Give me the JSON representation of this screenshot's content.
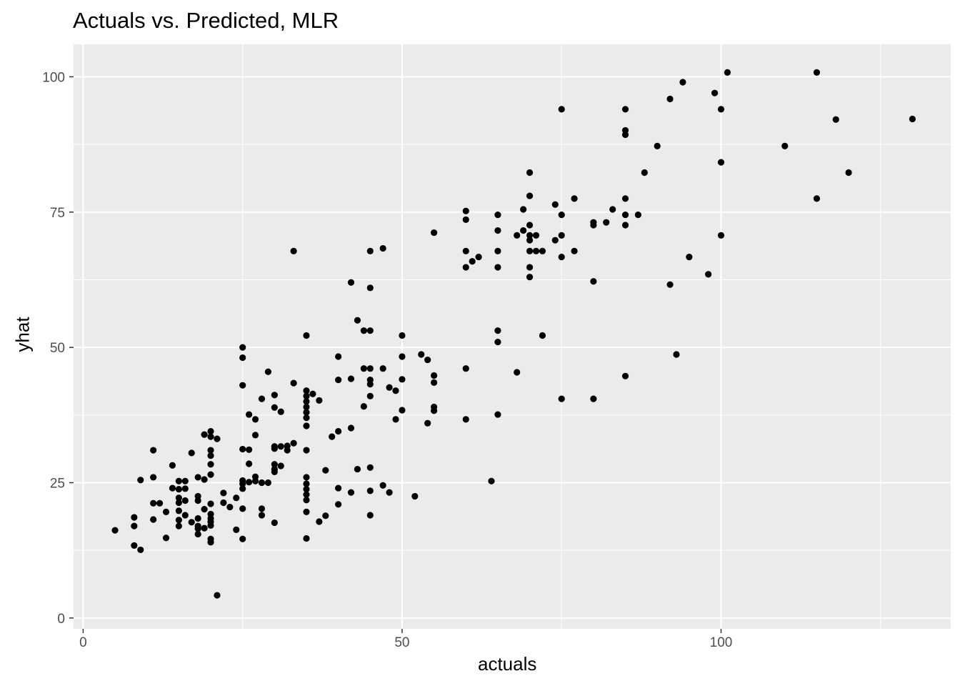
{
  "chart_data": {
    "type": "scatter",
    "title": "Actuals vs. Predicted, MLR",
    "xlabel": "actuals",
    "ylabel": "yhat",
    "xlim": [
      -1.5,
      136
    ],
    "ylim": [
      -2,
      106
    ],
    "x_ticks": [
      0,
      50,
      100
    ],
    "y_ticks": [
      0,
      25,
      50,
      75,
      100
    ],
    "grid": true,
    "background": "#ebebeb",
    "gridline_color": "#ffffff",
    "point_color": "#000000",
    "points": [
      [
        5,
        16.2
      ],
      [
        8,
        18.6
      ],
      [
        8,
        17
      ],
      [
        8,
        13.4
      ],
      [
        9,
        12.6
      ],
      [
        9,
        25.5
      ],
      [
        11,
        26
      ],
      [
        11,
        31
      ],
      [
        11,
        21.2
      ],
      [
        11,
        18.2
      ],
      [
        12,
        21.2
      ],
      [
        13,
        19.6
      ],
      [
        13,
        14.8
      ],
      [
        14,
        28.2
      ],
      [
        14,
        24
      ],
      [
        15,
        25.3
      ],
      [
        15,
        23.8
      ],
      [
        15,
        22.2
      ],
      [
        15,
        21.3
      ],
      [
        15,
        19.8
      ],
      [
        15,
        18.1
      ],
      [
        15,
        17
      ],
      [
        16,
        25.3
      ],
      [
        16,
        23.9
      ],
      [
        16,
        21.7
      ],
      [
        16,
        19
      ],
      [
        17,
        30.5
      ],
      [
        17,
        17.7
      ],
      [
        18,
        26
      ],
      [
        18,
        22.5
      ],
      [
        18,
        21.7
      ],
      [
        18,
        18.4
      ],
      [
        18,
        17
      ],
      [
        18,
        16.5
      ],
      [
        18,
        15.5
      ],
      [
        19,
        33.9
      ],
      [
        19,
        25.6
      ],
      [
        19,
        20.1
      ],
      [
        19,
        16.6
      ],
      [
        20,
        34.5
      ],
      [
        20,
        33.5
      ],
      [
        20,
        31
      ],
      [
        20,
        30
      ],
      [
        20,
        28.4
      ],
      [
        20,
        26.5
      ],
      [
        20,
        21.1
      ],
      [
        20,
        19.2
      ],
      [
        20,
        18.4
      ],
      [
        20,
        17.8
      ],
      [
        20,
        17.1
      ],
      [
        20,
        14.6
      ],
      [
        20,
        14
      ],
      [
        21,
        33.1
      ],
      [
        21,
        4.2
      ],
      [
        22,
        23.1
      ],
      [
        22,
        21.3
      ],
      [
        23,
        20.5
      ],
      [
        24,
        22.2
      ],
      [
        24,
        16.3
      ],
      [
        25,
        50
      ],
      [
        25,
        48.1
      ],
      [
        25,
        43
      ],
      [
        25,
        31.2
      ],
      [
        25,
        25.4
      ],
      [
        25,
        24.8
      ],
      [
        25,
        23.9
      ],
      [
        25,
        20.2
      ],
      [
        25,
        14.6
      ],
      [
        26,
        37.6
      ],
      [
        26,
        31.1
      ],
      [
        26,
        28.5
      ],
      [
        26,
        25.1
      ],
      [
        27,
        36.7
      ],
      [
        27,
        33.8
      ],
      [
        27,
        26.1
      ],
      [
        27,
        25.3
      ],
      [
        28,
        40.5
      ],
      [
        28,
        20.2
      ],
      [
        28,
        19
      ],
      [
        28,
        25
      ],
      [
        29,
        45.5
      ],
      [
        29,
        25
      ],
      [
        30,
        41.2
      ],
      [
        30,
        38.9
      ],
      [
        30,
        31.7
      ],
      [
        30,
        31.3
      ],
      [
        30,
        28.4
      ],
      [
        30,
        27.5
      ],
      [
        30,
        27
      ],
      [
        30,
        17.6
      ],
      [
        31,
        38.1
      ],
      [
        31,
        31.7
      ],
      [
        31,
        28.1
      ],
      [
        32,
        31.8
      ],
      [
        32,
        31
      ],
      [
        33,
        43.4
      ],
      [
        33,
        32.3
      ],
      [
        33,
        67.8
      ],
      [
        35,
        52.2
      ],
      [
        35,
        42
      ],
      [
        35,
        41
      ],
      [
        35,
        40
      ],
      [
        35,
        39
      ],
      [
        35,
        38
      ],
      [
        35,
        37
      ],
      [
        35,
        35.5
      ],
      [
        35,
        31
      ],
      [
        35,
        26
      ],
      [
        35,
        24.8
      ],
      [
        35,
        23.8
      ],
      [
        35,
        22.8
      ],
      [
        35,
        21.8
      ],
      [
        35,
        19.6
      ],
      [
        35,
        14.7
      ],
      [
        36,
        41.4
      ],
      [
        37,
        40.2
      ],
      [
        37,
        17.8
      ],
      [
        38,
        27.3
      ],
      [
        38,
        18.9
      ],
      [
        39,
        33.5
      ],
      [
        40,
        48.3
      ],
      [
        40,
        44
      ],
      [
        40,
        34.5
      ],
      [
        40,
        24
      ],
      [
        40,
        21
      ],
      [
        42,
        62
      ],
      [
        42,
        44.2
      ],
      [
        42,
        35.1
      ],
      [
        42,
        23.2
      ],
      [
        43,
        55
      ],
      [
        43,
        27.5
      ],
      [
        44,
        53.1
      ],
      [
        44,
        46.1
      ],
      [
        44,
        39.1
      ],
      [
        45,
        67.8
      ],
      [
        45,
        61
      ],
      [
        45,
        53.1
      ],
      [
        45,
        46.1
      ],
      [
        45,
        44
      ],
      [
        45,
        43.2
      ],
      [
        45,
        41
      ],
      [
        45,
        27.8
      ],
      [
        45,
        23.5
      ],
      [
        45,
        19
      ],
      [
        47,
        68.3
      ],
      [
        47,
        46.1
      ],
      [
        47,
        24.5
      ],
      [
        48,
        42.6
      ],
      [
        48,
        23.2
      ],
      [
        49,
        42
      ],
      [
        49,
        36.7
      ],
      [
        50,
        52.2
      ],
      [
        50,
        48.3
      ],
      [
        50,
        44.1
      ],
      [
        50,
        38.4
      ],
      [
        52,
        22.5
      ],
      [
        53,
        48.7
      ],
      [
        54,
        47.7
      ],
      [
        54,
        36
      ],
      [
        55,
        71.2
      ],
      [
        55,
        44.8
      ],
      [
        55,
        43.5
      ],
      [
        55,
        39
      ],
      [
        55,
        38.3
      ],
      [
        60,
        75.2
      ],
      [
        60,
        73.6
      ],
      [
        60,
        67.8
      ],
      [
        60,
        64.8
      ],
      [
        60,
        46.1
      ],
      [
        60,
        36.7
      ],
      [
        61,
        65.9
      ],
      [
        62,
        66.7
      ],
      [
        64,
        25.3
      ],
      [
        65,
        74.5
      ],
      [
        65,
        71.6
      ],
      [
        65,
        67.8
      ],
      [
        65,
        64.8
      ],
      [
        65,
        53.1
      ],
      [
        65,
        51
      ],
      [
        65,
        37.6
      ],
      [
        68,
        70.7
      ],
      [
        68,
        45.4
      ],
      [
        69,
        75.5
      ],
      [
        69,
        71.6
      ],
      [
        70,
        82.3
      ],
      [
        70,
        78
      ],
      [
        70,
        72.6
      ],
      [
        70,
        70.7
      ],
      [
        70,
        69.8
      ],
      [
        70,
        67.8
      ],
      [
        70,
        64.8
      ],
      [
        70,
        63
      ],
      [
        71,
        70.7
      ],
      [
        71,
        67.8
      ],
      [
        72,
        67.8
      ],
      [
        72,
        52.2
      ],
      [
        74,
        76.4
      ],
      [
        74,
        69.8
      ],
      [
        75,
        94
      ],
      [
        75,
        74.5
      ],
      [
        75,
        70.7
      ],
      [
        75,
        66.7
      ],
      [
        75,
        40.5
      ],
      [
        77,
        77.5
      ],
      [
        77,
        67.8
      ],
      [
        80,
        73.1
      ],
      [
        80,
        72.6
      ],
      [
        80,
        62.2
      ],
      [
        80,
        40.5
      ],
      [
        82,
        73.1
      ],
      [
        83,
        75.5
      ],
      [
        85,
        94
      ],
      [
        85,
        90.1
      ],
      [
        85,
        89.3
      ],
      [
        85,
        77.5
      ],
      [
        85,
        74.5
      ],
      [
        85,
        72.6
      ],
      [
        85,
        44.7
      ],
      [
        87,
        74.5
      ],
      [
        88,
        82.3
      ],
      [
        90,
        87.2
      ],
      [
        92,
        95.9
      ],
      [
        92,
        61.6
      ],
      [
        93,
        48.7
      ],
      [
        94,
        99
      ],
      [
        95,
        66.7
      ],
      [
        98,
        63.5
      ],
      [
        99,
        97
      ],
      [
        100,
        94
      ],
      [
        100,
        84.2
      ],
      [
        100,
        70.7
      ],
      [
        101,
        100.8
      ],
      [
        110,
        87.2
      ],
      [
        115,
        100.8
      ],
      [
        115,
        77.5
      ],
      [
        118,
        92.1
      ],
      [
        120,
        82.3
      ],
      [
        130,
        92.2
      ]
    ]
  }
}
